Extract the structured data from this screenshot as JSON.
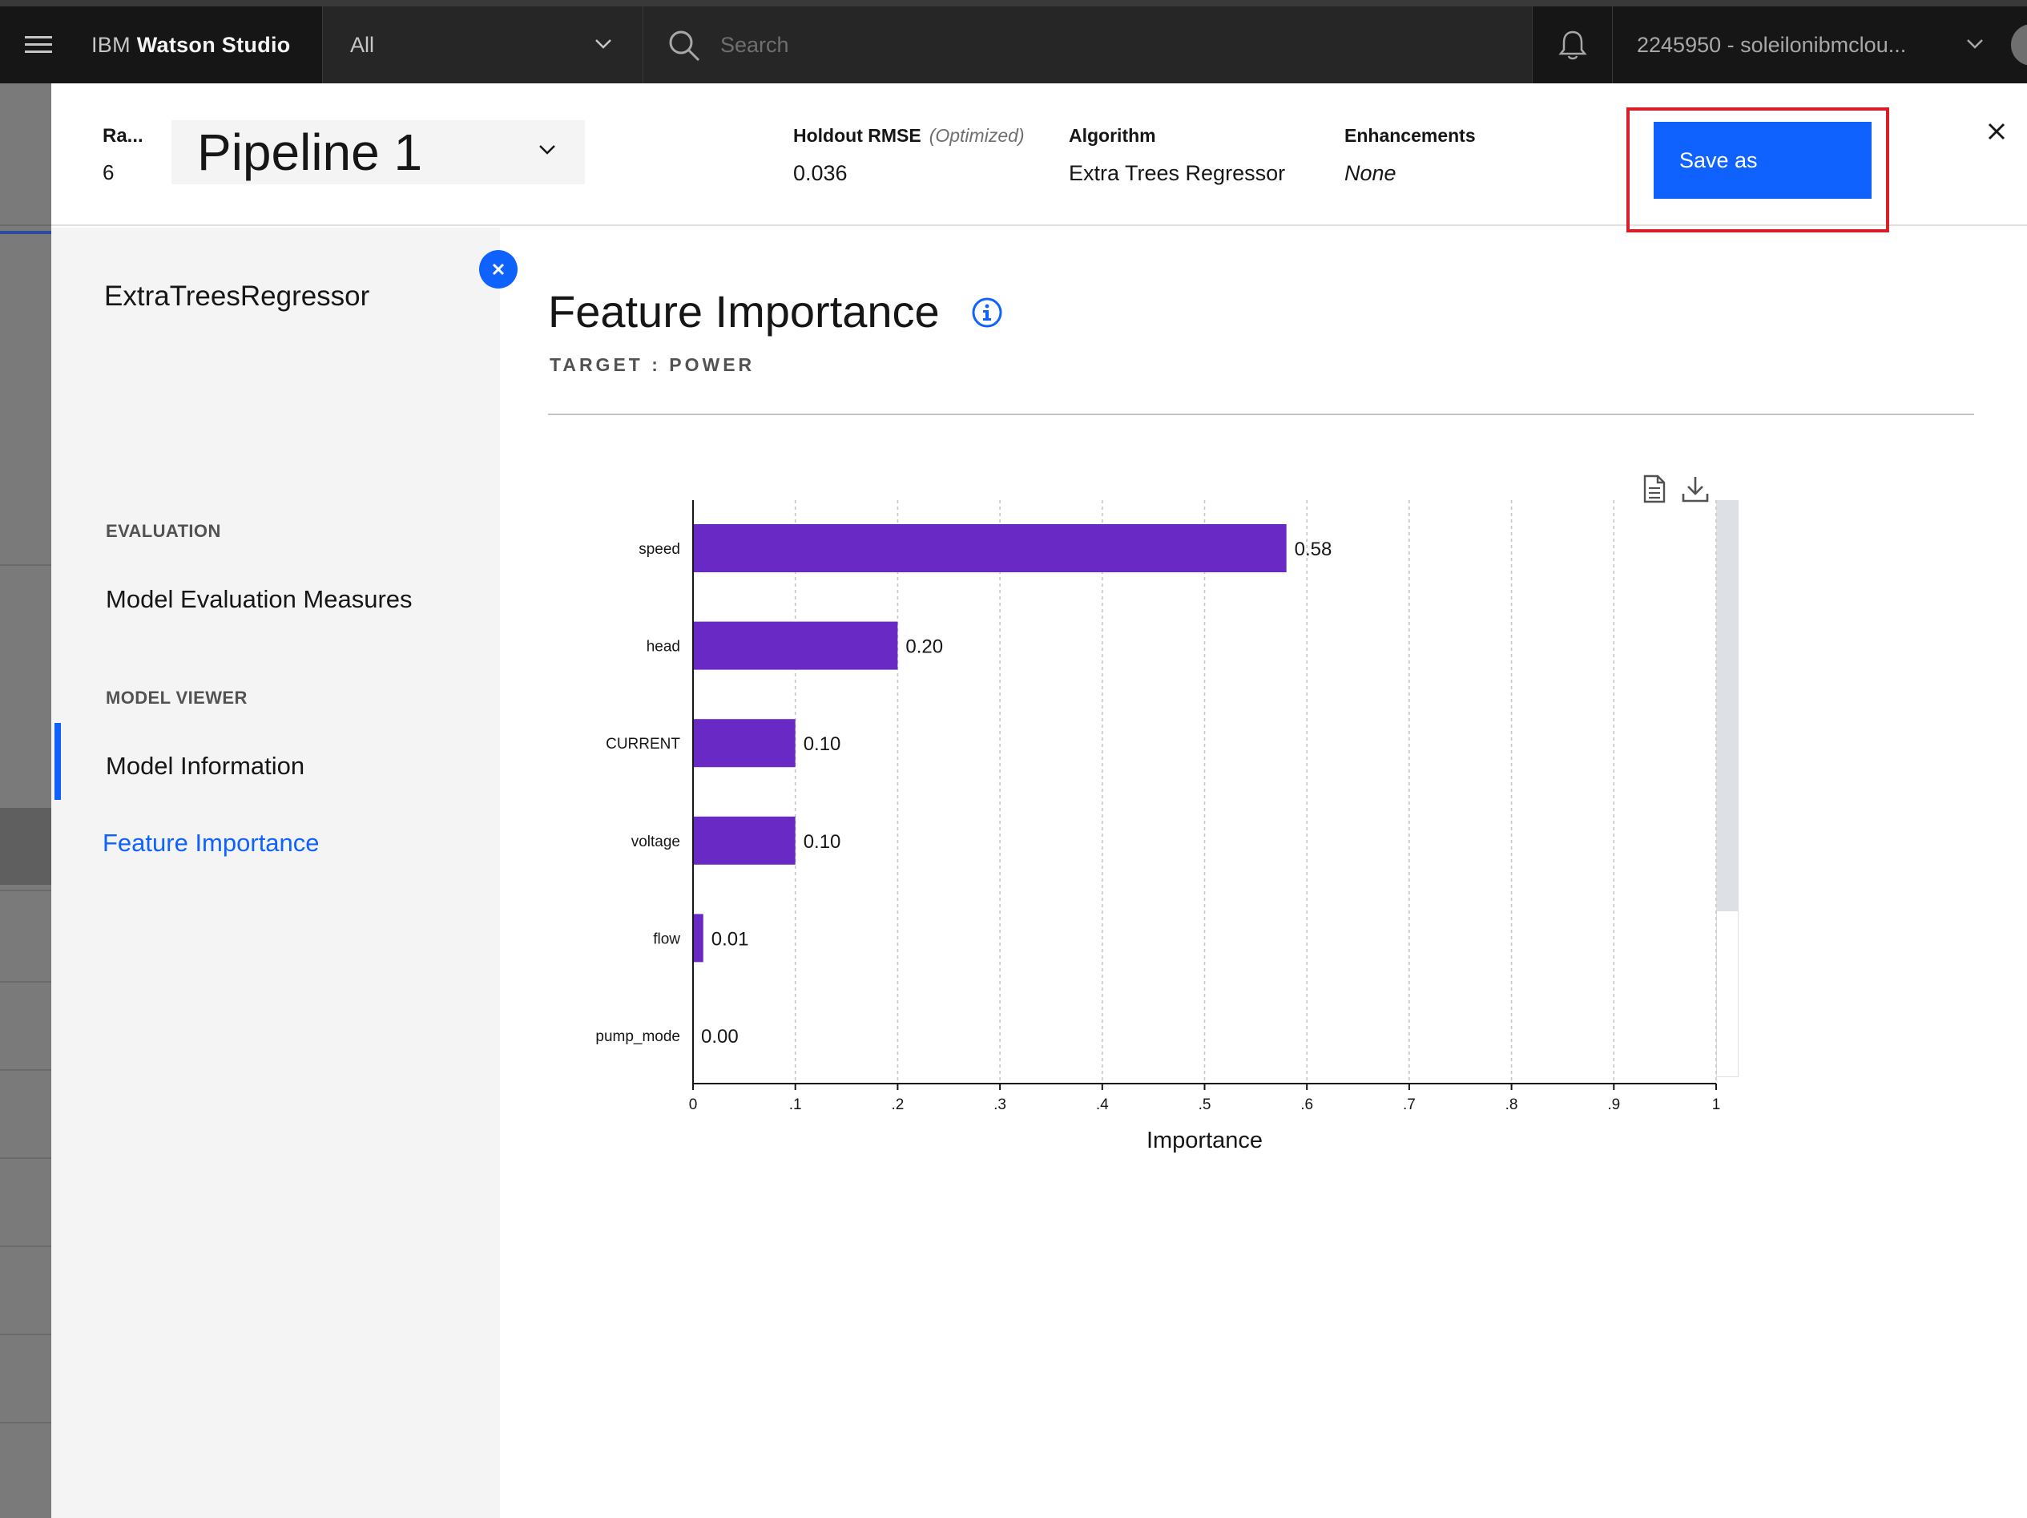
{
  "topbar": {
    "brand_prefix": "IBM",
    "brand_name": "Watson Studio",
    "scope_selected": "All",
    "search_placeholder": "Search",
    "account": "2245950 - soleilonibmclou..."
  },
  "header": {
    "rank_label": "Ra...",
    "rank_value": "6",
    "pipeline": "Pipeline 1",
    "metric_label": "Holdout RMSE",
    "metric_note": "(Optimized)",
    "metric_value": "0.036",
    "algorithm_label": "Algorithm",
    "algorithm_value": "Extra Trees Regressor",
    "enhancements_label": "Enhancements",
    "enhancements_value": "None",
    "save_label": "Save as"
  },
  "sidenav": {
    "title": "ExtraTreesRegressor",
    "sections": [
      {
        "label": "EVALUATION",
        "items": [
          "Model Evaluation Measures"
        ]
      },
      {
        "label": "MODEL VIEWER",
        "items": [
          "Model Information",
          "Feature Importance"
        ]
      }
    ],
    "active_item": "Feature Importance"
  },
  "main": {
    "title": "Feature Importance",
    "subtitle": "TARGET : POWER"
  },
  "colors": {
    "accent": "#0f62fe",
    "bar": "#6929c4",
    "highlight": "#da1e28"
  },
  "chart_data": {
    "type": "bar",
    "orientation": "horizontal",
    "categories": [
      "speed",
      "head",
      "CURRENT",
      "voltage",
      "flow",
      "pump_mode"
    ],
    "values": [
      0.58,
      0.2,
      0.1,
      0.1,
      0.01,
      0.0
    ],
    "value_labels": [
      "0.58",
      "0.20",
      "0.10",
      "0.10",
      "0.01",
      "0.00"
    ],
    "xlabel": "Importance",
    "xlim": [
      0,
      1
    ],
    "xticks": [
      0,
      0.1,
      0.2,
      0.3,
      0.4,
      0.5,
      0.6,
      0.7,
      0.8,
      0.9,
      1
    ],
    "xtick_labels": [
      "0",
      ".1",
      ".2",
      ".3",
      ".4",
      ".5",
      ".6",
      ".7",
      ".8",
      ".9",
      "1"
    ],
    "grid": "vertical-dashed",
    "legend": "none"
  }
}
